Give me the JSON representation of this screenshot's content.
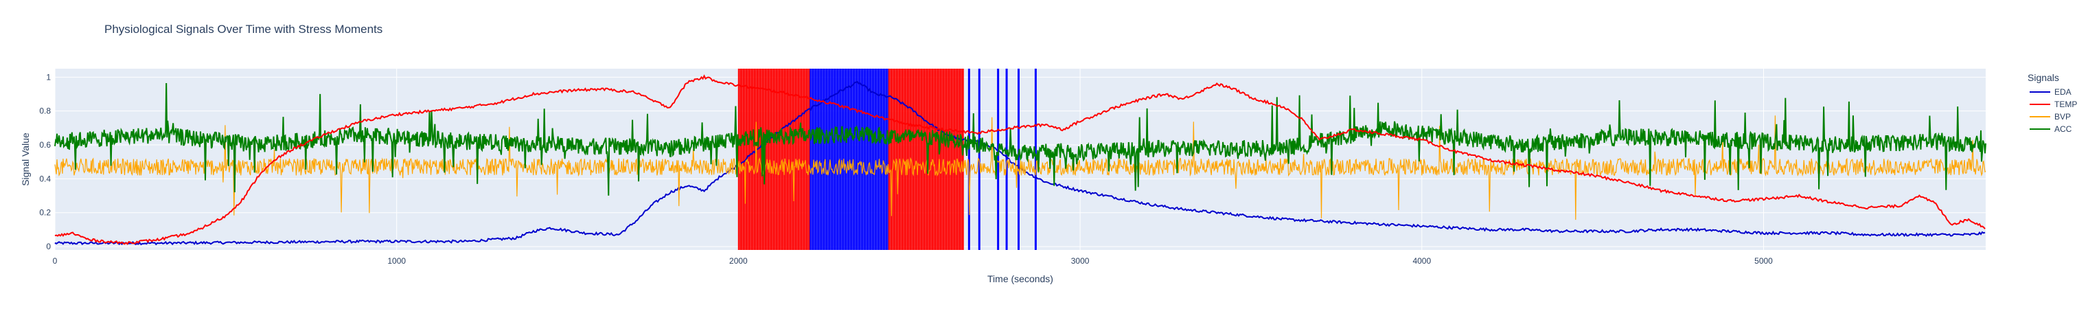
{
  "chart_data": {
    "type": "line",
    "title": "Physiological Signals Over Time with Stress Moments",
    "xlabel": "Time (seconds)",
    "ylabel": "Signal Value",
    "xlim": [
      0,
      5650
    ],
    "ylim": [
      -0.02,
      1.05
    ],
    "x_ticks": [
      0,
      1000,
      2000,
      3000,
      4000,
      5000
    ],
    "y_ticks": [
      0,
      0.2,
      0.4,
      0.6,
      0.8,
      1
    ],
    "grid": true,
    "legend_title": "Signals",
    "legend_position": "right",
    "series": [
      {
        "name": "EDA",
        "color": "#0000cd",
        "x": [
          0,
          300,
          600,
          900,
          1200,
          1350,
          1400,
          1450,
          1550,
          1650,
          1700,
          1750,
          1800,
          1850,
          1900,
          1950,
          2000,
          2100,
          2200,
          2250,
          2300,
          2350,
          2400,
          2450,
          2500,
          2550,
          2600,
          2650,
          2700,
          2750,
          2800,
          2850,
          2900,
          3000,
          3100,
          3200,
          3300,
          3400,
          3500,
          3600,
          3700,
          3800,
          3900,
          4000,
          4100,
          4200,
          4300,
          4400,
          4500,
          4600,
          4700,
          4800,
          4900,
          5000,
          5100,
          5200,
          5300,
          5400,
          5500,
          5600,
          5650
        ],
        "y": [
          0.02,
          0.02,
          0.025,
          0.03,
          0.03,
          0.05,
          0.09,
          0.11,
          0.08,
          0.07,
          0.15,
          0.25,
          0.32,
          0.36,
          0.33,
          0.42,
          0.48,
          0.65,
          0.8,
          0.86,
          0.92,
          0.97,
          0.9,
          0.88,
          0.82,
          0.74,
          0.67,
          0.63,
          0.62,
          0.58,
          0.5,
          0.43,
          0.38,
          0.33,
          0.29,
          0.25,
          0.22,
          0.2,
          0.18,
          0.16,
          0.15,
          0.14,
          0.13,
          0.12,
          0.11,
          0.1,
          0.1,
          0.09,
          0.09,
          0.09,
          0.1,
          0.1,
          0.09,
          0.08,
          0.08,
          0.08,
          0.07,
          0.07,
          0.07,
          0.07,
          0.08
        ]
      },
      {
        "name": "TEMP",
        "color": "#ff0000",
        "x": [
          0,
          50,
          100,
          150,
          200,
          300,
          400,
          500,
          550,
          600,
          650,
          700,
          800,
          900,
          1000,
          1100,
          1200,
          1300,
          1400,
          1500,
          1600,
          1700,
          1750,
          1800,
          1850,
          1900,
          1950,
          2000,
          2100,
          2200,
          2300,
          2400,
          2500,
          2600,
          2700,
          2800,
          2900,
          2950,
          3000,
          3100,
          3200,
          3250,
          3300,
          3400,
          3450,
          3500,
          3600,
          3650,
          3700,
          3800,
          3900,
          4000,
          4100,
          4200,
          4300,
          4400,
          4500,
          4600,
          4700,
          4800,
          4900,
          5000,
          5100,
          5200,
          5300,
          5400,
          5450,
          5500,
          5550,
          5600,
          5650
        ],
        "y": [
          0.06,
          0.08,
          0.04,
          0.03,
          0.02,
          0.04,
          0.08,
          0.18,
          0.28,
          0.43,
          0.52,
          0.58,
          0.67,
          0.74,
          0.78,
          0.8,
          0.82,
          0.85,
          0.9,
          0.92,
          0.93,
          0.91,
          0.86,
          0.82,
          0.97,
          1.0,
          0.97,
          0.95,
          0.92,
          0.88,
          0.83,
          0.77,
          0.72,
          0.69,
          0.67,
          0.7,
          0.72,
          0.69,
          0.74,
          0.82,
          0.88,
          0.9,
          0.87,
          0.96,
          0.93,
          0.88,
          0.82,
          0.75,
          0.63,
          0.69,
          0.66,
          0.63,
          0.56,
          0.51,
          0.48,
          0.45,
          0.42,
          0.38,
          0.33,
          0.3,
          0.27,
          0.28,
          0.3,
          0.26,
          0.23,
          0.24,
          0.3,
          0.26,
          0.13,
          0.16,
          0.11
        ]
      },
      {
        "name": "BVP",
        "color": "#ffa500",
        "x": [
          0,
          5650
        ],
        "y": [
          0.47,
          0.47
        ],
        "noise": 0.05,
        "center": 0.47
      },
      {
        "name": "ACC",
        "color": "#008000",
        "x": [
          0,
          300,
          600,
          900,
          1200,
          1500,
          1800,
          2000,
          2300,
          2600,
          2800,
          3000,
          3300,
          3600,
          3900,
          4000,
          4300,
          4600,
          4900,
          5200,
          5500,
          5650
        ],
        "y": [
          0.62,
          0.66,
          0.6,
          0.66,
          0.62,
          0.6,
          0.58,
          0.64,
          0.66,
          0.64,
          0.56,
          0.56,
          0.58,
          0.58,
          0.7,
          0.67,
          0.6,
          0.65,
          0.63,
          0.6,
          0.62,
          0.6
        ],
        "noise": 0.1
      }
    ],
    "stress_moments": [
      {
        "x0": 2000,
        "x1": 2210,
        "color": "#ff0000"
      },
      {
        "x0": 2210,
        "x1": 2440,
        "color": "#0000ff"
      },
      {
        "x0": 2440,
        "x1": 2660,
        "color": "#ff0000"
      },
      {
        "x": 2675,
        "color": "#0000ff"
      },
      {
        "x": 2705,
        "color": "#0000ff"
      },
      {
        "x": 2760,
        "color": "#0000ff"
      },
      {
        "x": 2785,
        "color": "#0000ff"
      },
      {
        "x": 2820,
        "color": "#0000ff"
      },
      {
        "x": 2870,
        "color": "#0000ff"
      }
    ]
  }
}
